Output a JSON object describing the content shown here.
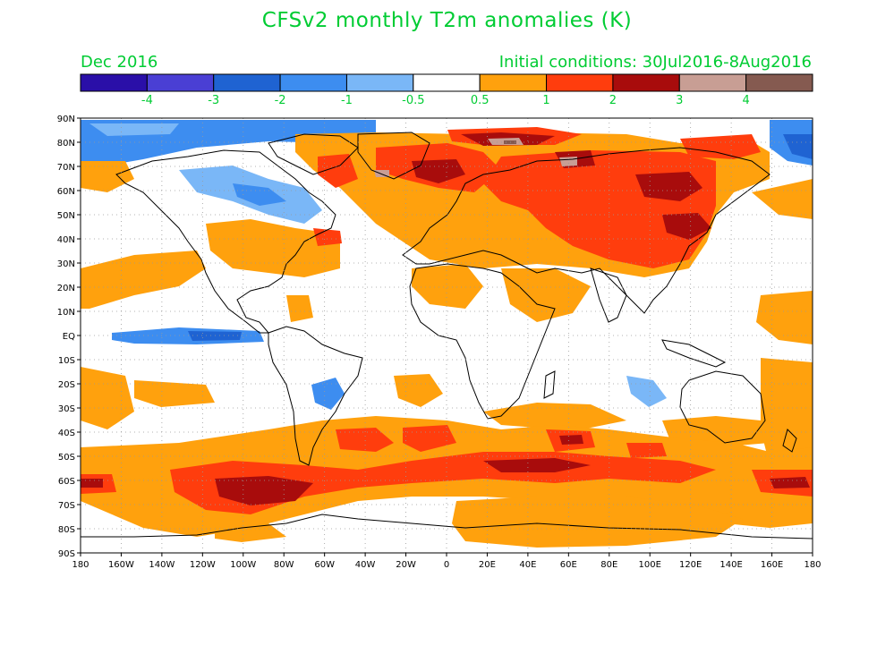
{
  "title": "CFSv2 monthly T2m anomalies (K)",
  "subtitle_left": "Dec 2016",
  "subtitle_right": "Initial conditions: 30Jul2016-8Aug2016",
  "colorbar": {
    "colors": [
      "#2a0fa8",
      "#4a3fd4",
      "#1f63d2",
      "#3d8df0",
      "#7ab7f7",
      "#ffffff",
      "#ffa10d",
      "#ff3d0d",
      "#a80c0c",
      "#c89e94",
      "#855a50"
    ],
    "tick_labels": [
      "-4",
      "-3",
      "-2",
      "-1",
      "-0.5",
      "0.5",
      "1",
      "2",
      "3",
      "4"
    ],
    "tick_values": [
      -4,
      -3,
      -2,
      -1,
      -0.5,
      0.5,
      1,
      2,
      3,
      4
    ]
  },
  "map": {
    "lat_labels": [
      "90N",
      "80N",
      "70N",
      "60N",
      "50N",
      "40N",
      "30N",
      "20N",
      "10N",
      "EQ",
      "10S",
      "20S",
      "30S",
      "40S",
      "50S",
      "60S",
      "70S",
      "80S",
      "90S"
    ],
    "lon_labels": [
      "180",
      "160W",
      "140W",
      "120W",
      "100W",
      "80W",
      "60W",
      "40W",
      "20W",
      "0",
      "20E",
      "40E",
      "60E",
      "80E",
      "100E",
      "120E",
      "140E",
      "160E",
      "180"
    ],
    "lon_range": [
      -180,
      180
    ],
    "lat_range": [
      -90,
      90
    ],
    "gridlines": true
  }
}
